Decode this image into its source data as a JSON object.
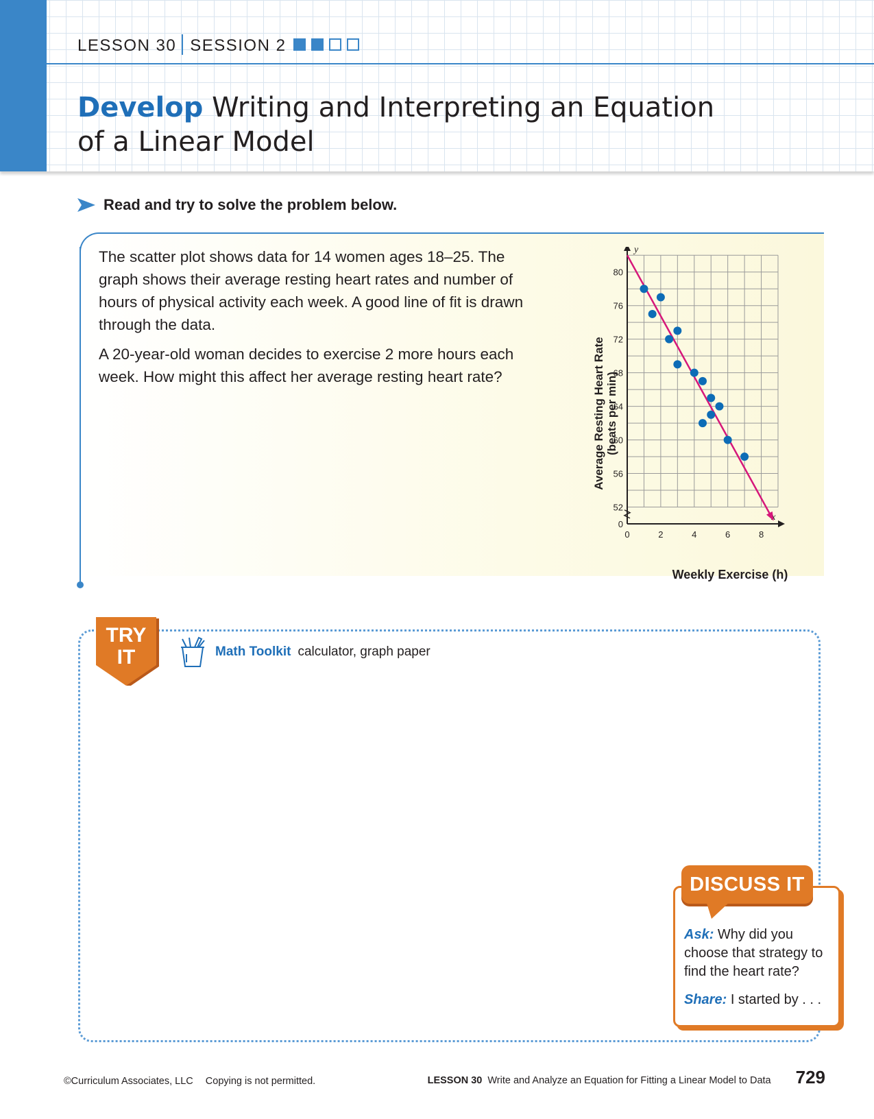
{
  "header": {
    "lesson": "LESSON 30",
    "session": "SESSION 2",
    "session_progress": {
      "completed": 2,
      "total": 4
    },
    "title_keyword": "Develop",
    "title_line1": "Writing and Interpreting an Equation",
    "title_line2": "of a Linear Model"
  },
  "instruction": "Read and try to solve the problem below.",
  "problem": {
    "paragraph1": "The scatter plot shows data for 14 women ages 18–25. The graph shows their average resting heart rates and number of hours of physical activity each week. A good line of fit is drawn through the data.",
    "paragraph2": "A 20-year-old woman decides to exercise 2 more hours each week. How might this affect her average resting heart rate?"
  },
  "chart_data": {
    "type": "scatter",
    "xlabel": "Weekly Exercise (h)",
    "ylabel_line1": "Average Resting Heart Rate",
    "ylabel_line2": "(beats per min)",
    "x_axis_var": "x",
    "y_axis_var": "y",
    "xlim": [
      0,
      9
    ],
    "ylim": [
      50,
      83
    ],
    "y_axis_break": true,
    "x_ticks": [
      0,
      2,
      4,
      6,
      8
    ],
    "y_ticks": [
      52,
      56,
      60,
      64,
      68,
      72,
      76,
      80
    ],
    "y_zero_label": "0",
    "grid": true,
    "points": [
      {
        "x": 1,
        "y": 78
      },
      {
        "x": 1.5,
        "y": 75
      },
      {
        "x": 2,
        "y": 77
      },
      {
        "x": 2.5,
        "y": 72
      },
      {
        "x": 3,
        "y": 73
      },
      {
        "x": 3,
        "y": 69
      },
      {
        "x": 4,
        "y": 68
      },
      {
        "x": 4.5,
        "y": 67
      },
      {
        "x": 4.5,
        "y": 62
      },
      {
        "x": 5,
        "y": 65
      },
      {
        "x": 5,
        "y": 63
      },
      {
        "x": 5.5,
        "y": 64
      },
      {
        "x": 6,
        "y": 60
      },
      {
        "x": 7,
        "y": 58
      }
    ],
    "fit_line": {
      "x0": 0,
      "y0": 82,
      "x1": 8.7,
      "y1": 50.5
    },
    "colors": {
      "points": "#0d6cb6",
      "fit_line": "#d6177a",
      "grid": "#9a9a9a"
    }
  },
  "tryit": {
    "badge_line1": "TRY",
    "badge_line2": "IT",
    "toolkit_label": "Math Toolkit",
    "toolkit_items": "calculator, graph paper"
  },
  "discuss": {
    "title": "DISCUSS IT",
    "ask_label": "Ask:",
    "ask_text": "Why did you choose that strategy to find the heart rate?",
    "share_label": "Share:",
    "share_text": "I started by . . ."
  },
  "footer": {
    "copyright": "©Curriculum Associates, LLC",
    "notice": "Copying is not permitted.",
    "lesson": "LESSON 30",
    "lesson_title": "Write and Analyze an Equation for Fitting a Linear Model to Data",
    "page_number": "729"
  },
  "colors": {
    "accent_blue": "#3a86c8",
    "title_blue": "#1f6fb8",
    "orange": "#e07a26"
  }
}
